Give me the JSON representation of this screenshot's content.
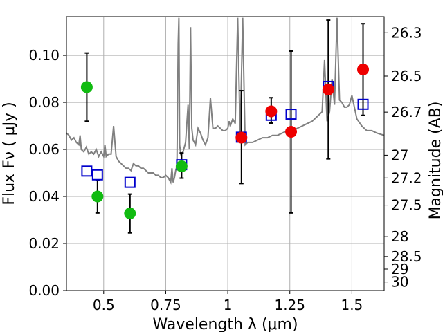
{
  "chart_data": {
    "type": "scatter",
    "title": "",
    "xlabel": "Wavelength  λ (μm)",
    "ylabel": "Flux  Fν  ( μJy )",
    "y2label": "Magnitude (AB)",
    "xlim": [
      0.35,
      1.63
    ],
    "ylim": [
      0.0,
      0.1165
    ],
    "x_ticks": [
      0.5,
      0.75,
      1.0,
      1.25,
      1.5
    ],
    "x_tick_labels": [
      "0.5",
      "0.75",
      "1",
      "1.25",
      "1.5"
    ],
    "y_ticks": [
      0.0,
      0.02,
      0.04,
      0.06,
      0.08,
      0.1
    ],
    "y_tick_labels": [
      "0.00",
      "0.02",
      "0.04",
      "0.06",
      "0.08",
      "0.10"
    ],
    "y2_ticks": [
      26.3,
      26.5,
      26.7,
      27,
      27.2,
      27.5,
      28,
      28.5,
      29,
      30
    ],
    "y2_tick_labels": [
      "26.3",
      "26.5",
      "26.7",
      "27",
      "27.2",
      "27.5",
      "28",
      "28.5",
      "29",
      "30"
    ],
    "grid": true,
    "colors": {
      "green": "#11bb11",
      "red": "#ee0000",
      "model_box": "#0000cc",
      "spectrum": "#808080",
      "grid": "#b0b0b0",
      "errorbar": "#000000"
    },
    "series": [
      {
        "marker": "circle",
        "color": "#11bb11",
        "points": [
          {
            "x": 0.432,
            "y": 0.0865,
            "ylo": 0.072,
            "yhi": 0.101
          },
          {
            "x": 0.475,
            "y": 0.04,
            "ylo": 0.033,
            "yhi": 0.047
          },
          {
            "x": 0.606,
            "y": 0.0328,
            "ylo": 0.0245,
            "yhi": 0.041
          },
          {
            "x": 0.814,
            "y": 0.0528,
            "ylo": 0.0478,
            "yhi": 0.0585
          }
        ]
      },
      {
        "marker": "circle",
        "color": "#ee0000",
        "points": [
          {
            "x": 1.055,
            "y": 0.065,
            "ylo": 0.0455,
            "yhi": 0.085
          },
          {
            "x": 1.175,
            "y": 0.0762,
            "ylo": 0.0712,
            "yhi": 0.082
          },
          {
            "x": 1.255,
            "y": 0.0675,
            "ylo": 0.033,
            "yhi": 0.1018
          },
          {
            "x": 1.405,
            "y": 0.0855,
            "ylo": 0.056,
            "yhi": 0.115
          },
          {
            "x": 1.545,
            "y": 0.094,
            "ylo": 0.0745,
            "yhi": 0.1135
          }
        ]
      },
      {
        "marker": "open-square",
        "color": "#0000cc",
        "points": [
          {
            "x": 0.432,
            "y": 0.0508
          },
          {
            "x": 0.475,
            "y": 0.0492
          },
          {
            "x": 0.606,
            "y": 0.046
          },
          {
            "x": 0.814,
            "y": 0.0535
          },
          {
            "x": 1.055,
            "y": 0.0652
          },
          {
            "x": 1.175,
            "y": 0.0745
          },
          {
            "x": 1.255,
            "y": 0.075
          },
          {
            "x": 1.405,
            "y": 0.0868
          },
          {
            "x": 1.545,
            "y": 0.0792
          }
        ]
      },
      {
        "marker": "line",
        "color": "#808080",
        "x": [
          0.35,
          0.36,
          0.37,
          0.38,
          0.39,
          0.4,
          0.405,
          0.41,
          0.42,
          0.43,
          0.44,
          0.45,
          0.46,
          0.47,
          0.48,
          0.49,
          0.5,
          0.505,
          0.51,
          0.52,
          0.53,
          0.54,
          0.55,
          0.56,
          0.57,
          0.58,
          0.59,
          0.6,
          0.61,
          0.62,
          0.63,
          0.64,
          0.65,
          0.66,
          0.67,
          0.68,
          0.69,
          0.7,
          0.71,
          0.72,
          0.73,
          0.74,
          0.75,
          0.76,
          0.77,
          0.775,
          0.78,
          0.785,
          0.79,
          0.795,
          0.8,
          0.803,
          0.806,
          0.81,
          0.82,
          0.83,
          0.84,
          0.845,
          0.85,
          0.855,
          0.86,
          0.87,
          0.88,
          0.89,
          0.9,
          0.91,
          0.92,
          0.93,
          0.94,
          0.95,
          0.96,
          0.97,
          0.98,
          0.99,
          1.0,
          1.005,
          1.01,
          1.02,
          1.03,
          1.04,
          1.05,
          1.06,
          1.07,
          1.08,
          1.09,
          1.1,
          1.12,
          1.14,
          1.16,
          1.18,
          1.2,
          1.22,
          1.24,
          1.26,
          1.28,
          1.3,
          1.32,
          1.34,
          1.36,
          1.38,
          1.39,
          1.4,
          1.41,
          1.42,
          1.43,
          1.44,
          1.45,
          1.46,
          1.47,
          1.48,
          1.49,
          1.5,
          1.52,
          1.54,
          1.56,
          1.58,
          1.6,
          1.63
        ],
        "y": [
          0.067,
          0.066,
          0.064,
          0.065,
          0.063,
          0.062,
          0.066,
          0.06,
          0.059,
          0.061,
          0.058,
          0.059,
          0.058,
          0.06,
          0.057,
          0.059,
          0.057,
          0.062,
          0.057,
          0.058,
          0.058,
          0.07,
          0.057,
          0.055,
          0.054,
          0.053,
          0.052,
          0.052,
          0.051,
          0.054,
          0.053,
          0.053,
          0.052,
          0.052,
          0.051,
          0.05,
          0.05,
          0.05,
          0.049,
          0.049,
          0.048,
          0.048,
          0.049,
          0.048,
          0.046,
          0.052,
          0.046,
          0.048,
          0.051,
          0.053,
          0.105,
          0.116,
          0.062,
          0.058,
          0.059,
          0.063,
          0.079,
          0.06,
          0.112,
          0.069,
          0.064,
          0.062,
          0.069,
          0.067,
          0.064,
          0.062,
          0.065,
          0.082,
          0.069,
          0.069,
          0.07,
          0.069,
          0.068,
          0.068,
          0.069,
          0.072,
          0.07,
          0.073,
          0.071,
          0.116,
          0.065,
          0.116,
          0.062,
          0.063,
          0.063,
          0.063,
          0.064,
          0.065,
          0.065,
          0.066,
          0.066,
          0.067,
          0.068,
          0.068,
          0.069,
          0.07,
          0.071,
          0.072,
          0.074,
          0.076,
          0.098,
          0.072,
          0.076,
          0.09,
          0.079,
          0.116,
          0.081,
          0.08,
          0.078,
          0.078,
          0.079,
          0.083,
          0.073,
          0.07,
          0.068,
          0.068,
          0.067,
          0.066
        ]
      }
    ]
  }
}
